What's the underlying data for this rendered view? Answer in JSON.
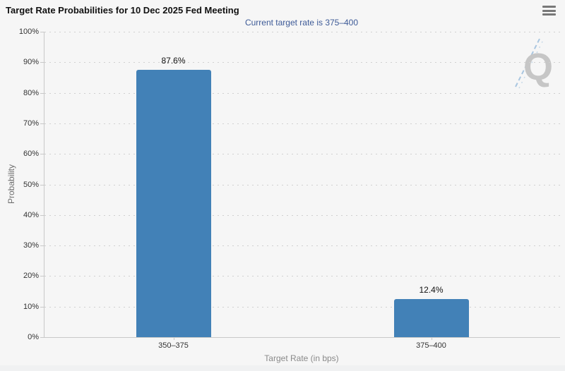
{
  "header": {
    "title": "Target Rate Probabilities for 10 Dec 2025 Fed Meeting"
  },
  "icons": {
    "menu": "hamburger-menu"
  },
  "chart_data": {
    "type": "bar",
    "title": "Target Rate Probabilities for 10 Dec 2025 Fed Meeting",
    "subtitle": "Current target rate is 375–400",
    "categories": [
      "350–375",
      "375–400"
    ],
    "values": [
      87.6,
      12.4
    ],
    "data_labels": [
      "87.6%",
      "12.4%"
    ],
    "xlabel": "Target Rate (in bps)",
    "ylabel": "Probability",
    "ylim": [
      0,
      100
    ],
    "ytick_step": 10,
    "ytick_suffix": "%",
    "grid": "horizontal-dotted",
    "legend": "none",
    "bar_color": "#4281b7",
    "watermark_letter": "Q"
  },
  "colors": {
    "bar": "#4281b7",
    "subtitle_text": "#3d5a97",
    "background": "#f6f6f6",
    "watermark_gray": "#c6c6c6",
    "watermark_dash_blue": "#a9c6e0"
  }
}
